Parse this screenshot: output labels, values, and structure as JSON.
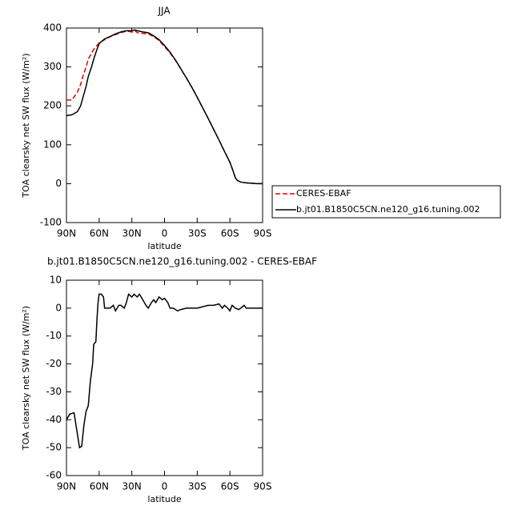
{
  "chart_data": [
    {
      "type": "line",
      "title": "JJA",
      "xlabel": "latitude",
      "ylabel": "TOA clearsky net SW flux (W/m²)",
      "x": [
        90,
        85,
        80,
        77,
        75,
        72,
        70,
        67,
        65,
        62,
        60,
        55,
        50,
        45,
        40,
        35,
        30,
        27,
        25,
        20,
        15,
        10,
        5,
        0,
        -5,
        -10,
        -15,
        -20,
        -25,
        -30,
        -35,
        -40,
        -45,
        -50,
        -55,
        -60,
        -63,
        -65,
        -67,
        -70,
        -75,
        -80,
        -85,
        -90
      ],
      "series": [
        {
          "name": "CERES-EBAF",
          "color": "#e00000",
          "dash": true,
          "values": [
            215,
            215,
            235,
            255,
            275,
            300,
            320,
            335,
            345,
            355,
            362,
            370,
            378,
            383,
            388,
            392,
            390,
            393,
            388,
            386,
            385,
            378,
            368,
            352,
            336,
            317,
            295,
            272,
            248,
            222,
            195,
            168,
            140,
            112,
            83,
            55,
            32,
            15,
            8,
            4,
            2,
            1,
            0,
            0
          ]
        },
        {
          "name": "b.jt01.B1850C5CN.ne120_g16.tuning.002",
          "color": "#000000",
          "dash": false,
          "values": [
            175,
            177,
            185,
            200,
            220,
            250,
            275,
            300,
            320,
            345,
            360,
            372,
            378,
            385,
            390,
            393,
            393,
            395,
            393,
            390,
            388,
            380,
            370,
            355,
            338,
            318,
            295,
            272,
            248,
            222,
            195,
            168,
            140,
            112,
            83,
            55,
            32,
            15,
            8,
            4,
            2,
            1,
            0,
            0
          ]
        }
      ],
      "xlim": [
        90,
        -90
      ],
      "xticks": [
        {
          "value": 90,
          "label": "90N"
        },
        {
          "value": 60,
          "label": "60N"
        },
        {
          "value": 30,
          "label": "30N"
        },
        0,
        {
          "value": -30,
          "label": "30S"
        },
        {
          "value": -60,
          "label": "60S"
        },
        {
          "value": -90,
          "label": "90S"
        }
      ],
      "ylim": [
        -100,
        400
      ],
      "yticks": [
        -100,
        0,
        100,
        200,
        300,
        400
      ],
      "legend": "right"
    },
    {
      "type": "line",
      "title": "b.jt01.B1850C5CN.ne120_g16.tuning.002 - CERES-EBAF",
      "xlabel": "latitude",
      "ylabel": "TOA clearsky net SW flux (W/m²)",
      "x": [
        90,
        87,
        83,
        80,
        78,
        76,
        74,
        72,
        70,
        68,
        66,
        65,
        63,
        62,
        61,
        60,
        58,
        56,
        55,
        53,
        50,
        47,
        45,
        42,
        40,
        37,
        35,
        33,
        30,
        28,
        25,
        23,
        20,
        17,
        15,
        12,
        10,
        8,
        5,
        2,
        0,
        -3,
        -5,
        -8,
        -12,
        -15,
        -20,
        -25,
        -30,
        -35,
        -40,
        -45,
        -50,
        -53,
        -55,
        -58,
        -60,
        -62,
        -65,
        -68,
        -70,
        -73,
        -75,
        -80,
        -90
      ],
      "series": [
        {
          "color": "#000000",
          "dash": false,
          "values": [
            -40,
            -38,
            -37.5,
            -45,
            -50,
            -49.5,
            -42,
            -37,
            -35,
            -26,
            -20,
            -13,
            -12,
            -4,
            2,
            5,
            5,
            4,
            0,
            0,
            0,
            1,
            -1,
            1,
            1,
            0,
            2,
            5,
            4,
            5,
            4,
            5,
            3,
            1,
            0,
            2,
            3,
            2,
            4,
            3,
            3.5,
            2,
            0,
            0,
            -1,
            -0.5,
            0,
            0,
            0,
            0.5,
            1,
            1,
            1.5,
            0,
            1,
            0,
            -1,
            1,
            0,
            -0.5,
            0,
            1,
            0,
            0,
            0
          ]
        }
      ],
      "xlim": [
        90,
        -90
      ],
      "xticks": [
        {
          "value": 90,
          "label": "90N"
        },
        {
          "value": 60,
          "label": "60N"
        },
        {
          "value": 30,
          "label": "30N"
        },
        0,
        {
          "value": -30,
          "label": "30S"
        },
        {
          "value": -60,
          "label": "60S"
        },
        {
          "value": -90,
          "label": "90S"
        }
      ],
      "ylim": [
        -60,
        10
      ],
      "yticks": [
        -60,
        -50,
        -40,
        -30,
        -20,
        -10,
        0,
        10
      ]
    }
  ]
}
